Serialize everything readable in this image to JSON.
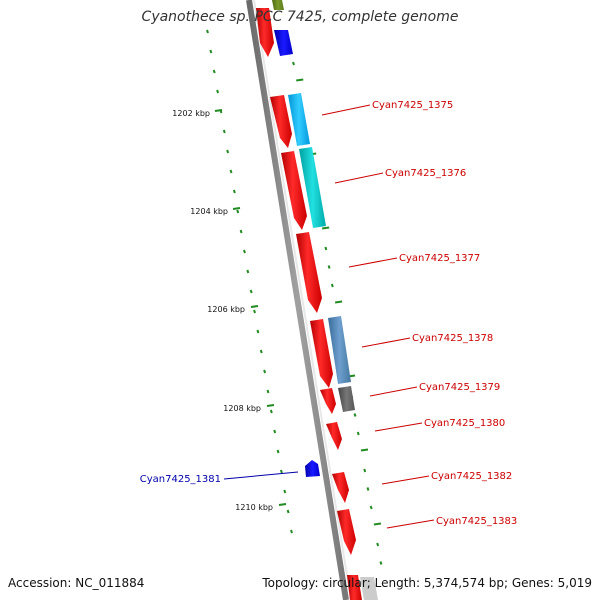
{
  "title": "Cyanothece sp. PCC 7425, complete genome",
  "accession_label": "Accession: NC_011884",
  "topology_label": "Topology: circular; Length: 5,374,574 bp; Genes: 5,019",
  "ticks": [
    {
      "label": "1202 kbp",
      "pos": 1202
    },
    {
      "label": "1204 kbp",
      "pos": 1204
    },
    {
      "label": "1206 kbp",
      "pos": 1206
    },
    {
      "label": "1208 kbp",
      "pos": 1208
    },
    {
      "label": "1210 kbp",
      "pos": 1210
    }
  ],
  "gene_labels": [
    {
      "id": "Cyan7425_1375",
      "text": "Cyan7425_1375",
      "side": "right",
      "color": "#cc0000"
    },
    {
      "id": "Cyan7425_1376",
      "text": "Cyan7425_1376",
      "side": "right",
      "color": "#cc0000"
    },
    {
      "id": "Cyan7425_1377",
      "text": "Cyan7425_1377",
      "side": "right",
      "color": "#cc0000"
    },
    {
      "id": "Cyan7425_1378",
      "text": "Cyan7425_1378",
      "side": "right",
      "color": "#cc0000"
    },
    {
      "id": "Cyan7425_1379",
      "text": "Cyan7425_1379",
      "side": "right",
      "color": "#cc0000"
    },
    {
      "id": "Cyan7425_1380",
      "text": "Cyan7425_1380",
      "side": "right",
      "color": "#cc0000"
    },
    {
      "id": "Cyan7425_1381",
      "text": "Cyan7425_1381",
      "side": "left",
      "color": "#0000aa"
    },
    {
      "id": "Cyan7425_1382",
      "text": "Cyan7425_1382",
      "side": "right",
      "color": "#cc0000"
    },
    {
      "id": "Cyan7425_1383",
      "text": "Cyan7425_1383",
      "side": "right",
      "color": "#cc0000"
    }
  ],
  "colors": {
    "backbone": "#888888",
    "forward_gene": "#ff0000",
    "reverse_gene": "#0000ff",
    "tick_marks": "#228b22",
    "label_forward": "#cc0000",
    "label_reverse": "#0000aa"
  }
}
